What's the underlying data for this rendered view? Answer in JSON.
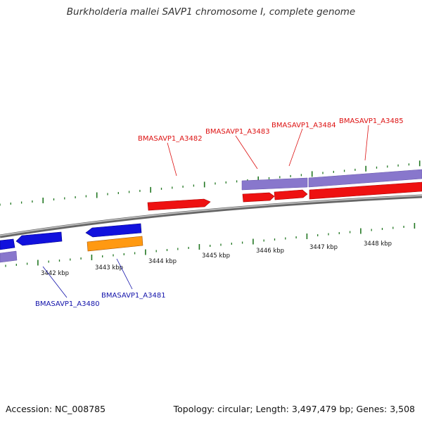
{
  "title": "Burkholderia mallei SAVP1 chromosome I, complete genome",
  "footer": {
    "accession": "Accession: NC_008785",
    "stats": "Topology: circular; Length: 3,497,479 bp; Genes: 3,508"
  },
  "colors": {
    "forward_gene": "#ee1111",
    "reverse_gene": "#1111dd",
    "reverse_feature": "#ff9911",
    "purple_feature": "#8877cc",
    "tick": "#227722",
    "backbone": "#888888",
    "label_forward": "#dd1111",
    "label_reverse": "#1111aa"
  },
  "scale_labels": [
    "3442 kbp",
    "3443 kbp",
    "3444 kbp",
    "3445 kbp",
    "3446 kbp",
    "3447 kbp",
    "3448 kbp"
  ],
  "gene_labels": {
    "forward": [
      "BMASAVP1_A3482",
      "BMASAVP1_A3483",
      "BMASAVP1_A3484",
      "BMASAVP1_A3485"
    ],
    "reverse": [
      "BMASAVP1_A3480",
      "BMASAVP1_A3481"
    ]
  }
}
